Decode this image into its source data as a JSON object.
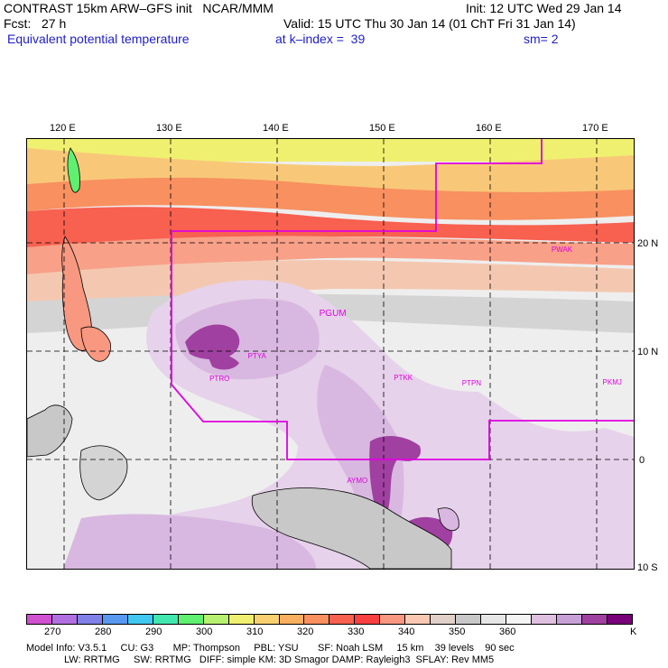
{
  "header": {
    "line1_left": "CONTRAST 15km ARW–GFS init   NCAR/MMM",
    "line1_right": "Init: 12 UTC Wed 29 Jan 14",
    "line2_left": "Fcst:   27 h",
    "line2_right": "Valid: 15 UTC Thu 30 Jan 14 (01 ChT Fri 31 Jan 14)",
    "line3_left": "Equivalent potential temperature",
    "line3_mid": "at k–index =  39",
    "line3_right": "sm= 2"
  },
  "map": {
    "lon_labels": [
      "120 E",
      "130 E",
      "140 E",
      "150 E",
      "160 E",
      "170 E"
    ],
    "lat_labels": [
      "20 N",
      "10 N",
      "0",
      "10 S"
    ],
    "stations": [
      {
        "id": "PWAK",
        "lon": 166.6,
        "lat": 19.3
      },
      {
        "id": "PGUM",
        "lon": 144.8,
        "lat": 13.5
      },
      {
        "id": "PTYA",
        "lon": 138.1,
        "lat": 9.5
      },
      {
        "id": "PTRO",
        "lon": 134.5,
        "lat": 7.4
      },
      {
        "id": "PTKK",
        "lon": 151.8,
        "lat": 7.5
      },
      {
        "id": "PTPN",
        "lon": 158.2,
        "lat": 7.0
      },
      {
        "id": "PKMJ",
        "lon": 171.4,
        "lat": 7.1
      },
      {
        "id": "AYMO",
        "lon": 147.4,
        "lat": -2.0
      }
    ]
  },
  "colorbar": {
    "colors": [
      "#d050d0",
      "#b070e0",
      "#8080e8",
      "#5898f0",
      "#40c8f0",
      "#40e8b0",
      "#60f070",
      "#b8f070",
      "#f0f070",
      "#f8d070",
      "#f8b060",
      "#f89060",
      "#f86050",
      "#f84040",
      "#f89880",
      "#f8c8b0",
      "#e0d0c8",
      "#c8c8c8",
      "#e6e6e6",
      "#f4f4f4",
      "#e0c0e0",
      "#c8a0d8",
      "#a040a0",
      "#780078"
    ],
    "labels": [
      "270",
      "280",
      "290",
      "300",
      "310",
      "320",
      "330",
      "340",
      "350",
      "360"
    ],
    "unit": "K"
  },
  "footer": {
    "line1": "Model Info: V3.5.1     CU: G3       MP: Thompson     PBL: YSU       SF: Noah LSM     15 km    39 levels    90 sec",
    "line2": "LW: RRTMG     SW: RRTMG   DIFF: simple KM: 3D Smagor DAMP: Rayleigh3  SFLAY: Rev MM5"
  }
}
